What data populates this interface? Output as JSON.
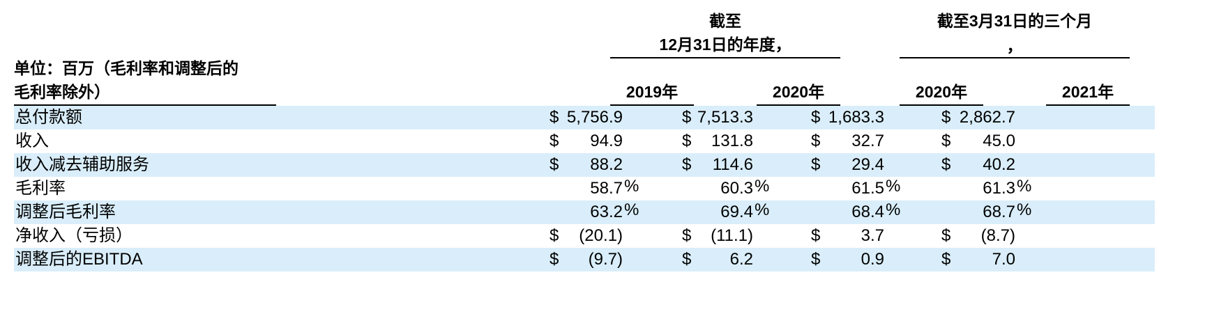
{
  "header": {
    "unit_label_line1": "单位：百万（毛利率和调整后的",
    "unit_label_line2": "毛利率除外）",
    "group1_line1": "截至",
    "group1_line2": "12月31日的年度，",
    "group2_line1": "截至3月31日的三个月",
    "group2_line2": "，",
    "col_2019": "2019年",
    "col_2020a": "2020年",
    "col_2020b": "2020年",
    "col_2021": "2021年"
  },
  "rows": [
    {
      "label": "总付款额",
      "dollar": [
        "$",
        "$",
        "$",
        "$"
      ],
      "values": [
        "5,756.9",
        "7,513.3",
        "1,683.3",
        "2,862.7"
      ],
      "pct": [
        "",
        "",
        "",
        ""
      ]
    },
    {
      "label": "收入",
      "dollar": [
        "$",
        "$",
        "$",
        "$"
      ],
      "values": [
        "94.9",
        "131.8",
        "32.7",
        "45.0"
      ],
      "pct": [
        "",
        "",
        "",
        ""
      ]
    },
    {
      "label": "收入减去辅助服务",
      "dollar": [
        "$",
        "$",
        "$",
        "$"
      ],
      "values": [
        "88.2",
        "114.6",
        "29.4",
        "40.2"
      ],
      "pct": [
        "",
        "",
        "",
        ""
      ]
    },
    {
      "label": "毛利率",
      "dollar": [
        "",
        "",
        "",
        ""
      ],
      "values": [
        "58.7",
        "60.3",
        "61.5",
        "61.3"
      ],
      "pct": [
        "%",
        "%",
        "%",
        "%"
      ]
    },
    {
      "label": "调整后毛利率",
      "dollar": [
        "",
        "",
        "",
        ""
      ],
      "values": [
        "63.2",
        "69.4",
        "68.4",
        "68.7"
      ],
      "pct": [
        "%",
        "%",
        "%",
        "%"
      ]
    },
    {
      "label": "净收入（亏损）",
      "dollar": [
        "$",
        "$",
        "$",
        "$"
      ],
      "values": [
        "(20.1)",
        "(11.1)",
        "3.7",
        "(8.7)"
      ],
      "pct": [
        "",
        "",
        "",
        ""
      ]
    },
    {
      "label": "调整后的EBITDA",
      "dollar": [
        "$",
        "$",
        "$",
        "$"
      ],
      "values": [
        "(9.7)",
        "6.2",
        "0.9",
        "7.0"
      ],
      "pct": [
        "",
        "",
        "",
        ""
      ]
    }
  ],
  "colors": {
    "band": "#d9eefa",
    "text": "#000000"
  }
}
